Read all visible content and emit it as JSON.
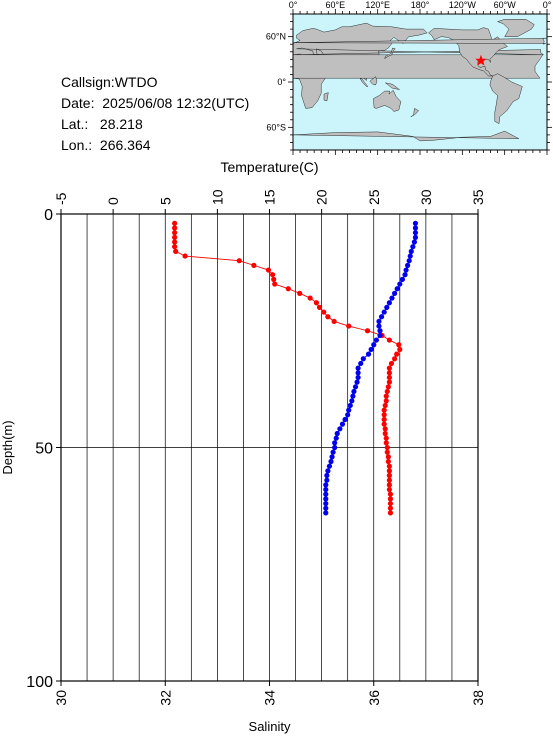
{
  "info": {
    "callsign": "Callsign:WTDO",
    "date_label": "Date:",
    "date_value": "2025/06/08 12:32(UTC)",
    "lat_label": "Lat.:",
    "lat_value": "28.218",
    "lon_label": "Lon.:",
    "lon_value": "266.364"
  },
  "map": {
    "top_tick_labels": [
      "0°",
      "60°E",
      "120°E",
      "180°",
      "120°W",
      "60°W",
      "0°"
    ],
    "left_tick_labels": [
      "60°N",
      "0°",
      "60°S"
    ],
    "ocean_color": "#ccf5fb",
    "land_color": "#bfbfbf",
    "marker": "star",
    "marker_color": "#ff0000",
    "marker_lon": 266.364,
    "marker_lat": 28.218
  },
  "chart_data": {
    "type": "line",
    "top_axis": {
      "label": "Temperature(C)",
      "range": [
        -5,
        35
      ],
      "ticks": [
        "-5",
        "0",
        "5",
        "10",
        "15",
        "20",
        "25",
        "30",
        "35"
      ]
    },
    "bottom_axis": {
      "label": "Salinity",
      "range": [
        30,
        38
      ],
      "ticks": [
        "30",
        "32",
        "34",
        "36",
        "38"
      ]
    },
    "y_axis": {
      "label": "Depth(m)",
      "range": [
        0,
        100
      ],
      "ticks": [
        "0",
        "50",
        "100"
      ],
      "inverted": true
    },
    "grid": true,
    "series": [
      {
        "quantity": "Temperature",
        "axis": "top",
        "color": "#ff0000",
        "depth": [
          2,
          3,
          4,
          5,
          6,
          7,
          8,
          9,
          10,
          11,
          12,
          13,
          14,
          15,
          16,
          17,
          18,
          19,
          20,
          21,
          22,
          23,
          24,
          25,
          26,
          27,
          28,
          29,
          30,
          31,
          32,
          33,
          34,
          35,
          36,
          37,
          38,
          39,
          40,
          41,
          42,
          43,
          44,
          45,
          46,
          47,
          48,
          49,
          50,
          51,
          52,
          53,
          54,
          55,
          56,
          57,
          58,
          59,
          60,
          61,
          62,
          63,
          64
        ],
        "value": [
          5.9,
          5.9,
          5.9,
          5.9,
          5.9,
          5.9,
          6.0,
          6.9,
          12.1,
          13.5,
          14.9,
          15.3,
          15.4,
          15.5,
          16.8,
          17.9,
          18.9,
          19.5,
          19.8,
          20.2,
          20.6,
          21.2,
          22.6,
          24.4,
          25.8,
          26.5,
          27.4,
          27.5,
          27.2,
          27.0,
          26.7,
          26.5,
          26.5,
          26.5,
          26.5,
          26.4,
          26.3,
          26.2,
          26.2,
          26.1,
          26.0,
          26.0,
          26.0,
          26.0,
          26.1,
          26.1,
          26.2,
          26.2,
          26.3,
          26.3,
          26.4,
          26.4,
          26.5,
          26.5,
          26.5,
          26.5,
          26.5,
          26.5,
          26.6,
          26.6,
          26.6,
          26.6,
          26.6
        ]
      },
      {
        "quantity": "Salinity",
        "axis": "bottom",
        "color": "#0000ee",
        "depth": [
          2,
          3,
          4,
          5,
          6,
          7,
          8,
          9,
          10,
          11,
          12,
          13,
          14,
          15,
          16,
          17,
          18,
          19,
          20,
          21,
          22,
          23,
          24,
          25,
          26,
          27,
          28,
          29,
          30,
          31,
          32,
          33,
          34,
          35,
          36,
          37,
          38,
          39,
          40,
          41,
          42,
          43,
          44,
          45,
          46,
          47,
          48,
          49,
          50,
          51,
          52,
          53,
          54,
          55,
          56,
          57,
          58,
          59,
          60,
          61,
          62,
          63,
          64
        ],
        "value": [
          36.8,
          36.8,
          36.8,
          36.8,
          36.78,
          36.75,
          36.72,
          36.7,
          36.68,
          36.65,
          36.62,
          36.6,
          36.55,
          36.5,
          36.45,
          36.4,
          36.35,
          36.3,
          36.25,
          36.2,
          36.15,
          36.1,
          36.1,
          36.12,
          36.12,
          36.05,
          36.0,
          35.95,
          35.9,
          35.8,
          35.75,
          35.7,
          35.7,
          35.7,
          35.68,
          35.65,
          35.62,
          35.6,
          35.58,
          35.55,
          35.52,
          35.5,
          35.45,
          35.4,
          35.35,
          35.3,
          35.28,
          35.25,
          35.25,
          35.22,
          35.2,
          35.18,
          35.15,
          35.12,
          35.1,
          35.1,
          35.08,
          35.08,
          35.08,
          35.08,
          35.08,
          35.08,
          35.08
        ]
      }
    ]
  }
}
